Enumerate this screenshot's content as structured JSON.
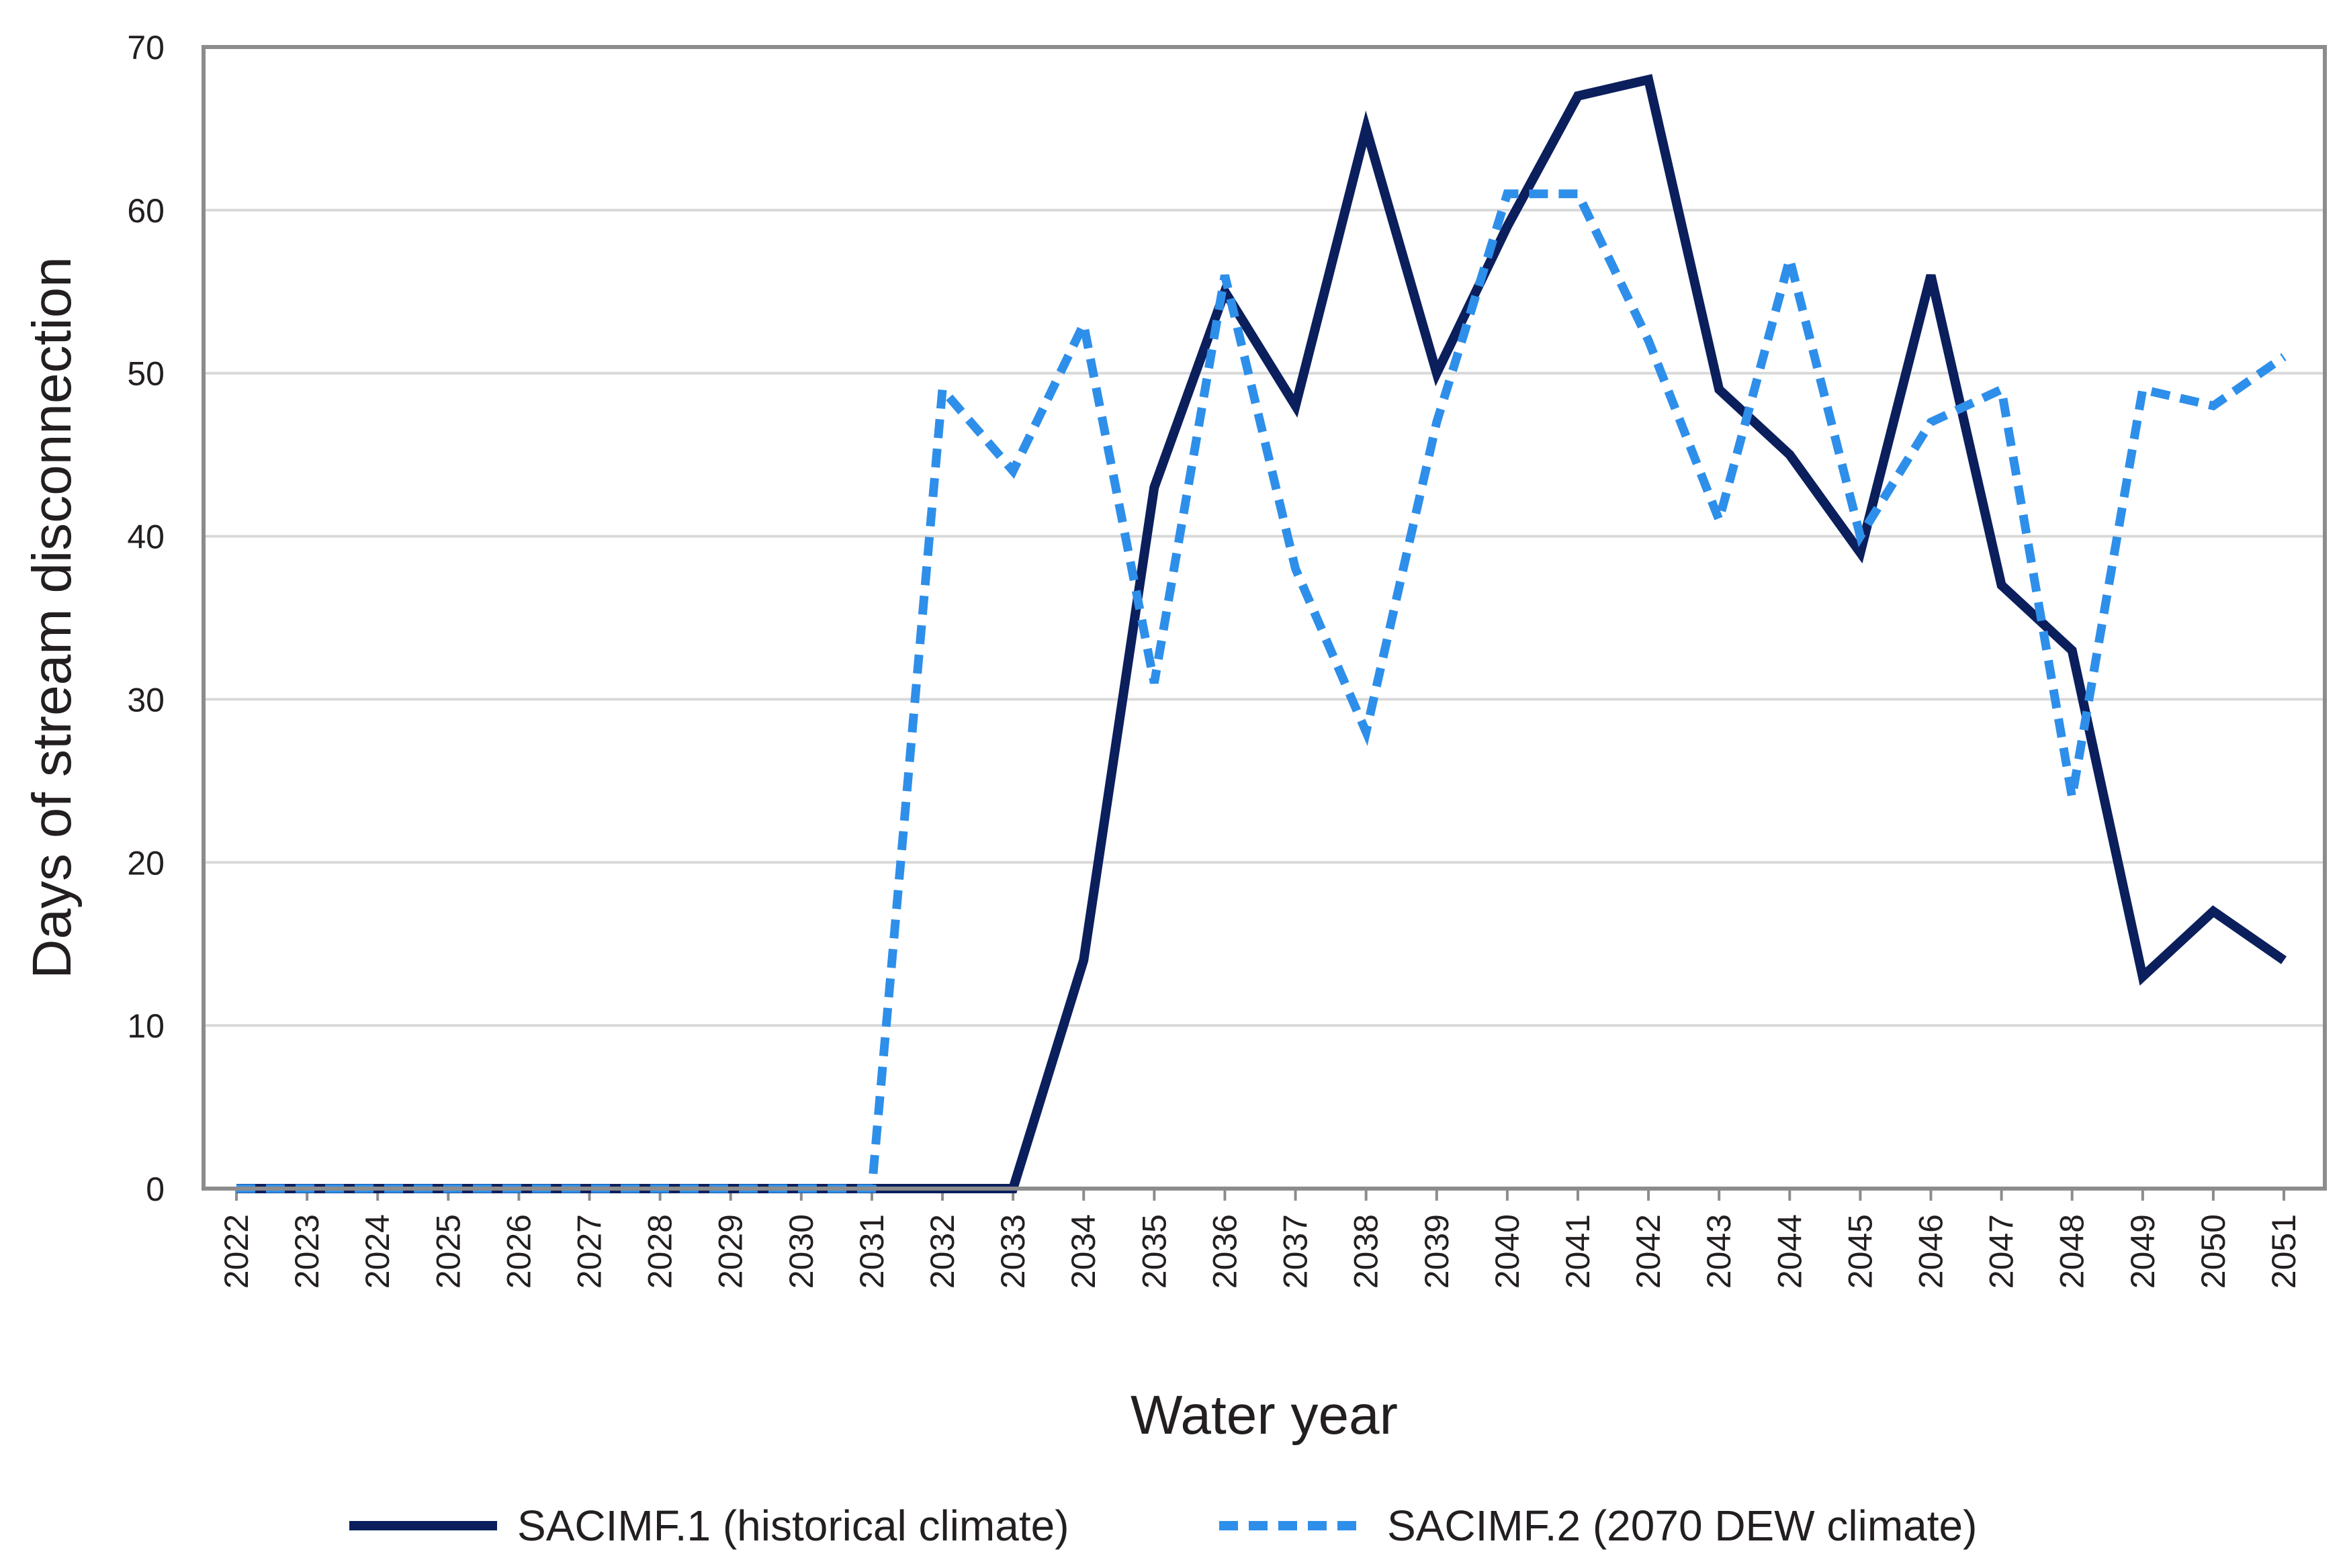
{
  "chart_data": {
    "type": "line",
    "title": "",
    "xlabel": "Water year",
    "ylabel": "Days of stream disconnection",
    "ylim": [
      0,
      70
    ],
    "yticks": [
      0,
      10,
      20,
      30,
      40,
      50,
      60,
      70
    ],
    "grid": true,
    "legend_position": "bottom",
    "categories": [
      "2022",
      "2023",
      "2024",
      "2025",
      "2026",
      "2027",
      "2028",
      "2029",
      "2030",
      "2031",
      "2032",
      "2033",
      "2034",
      "2035",
      "2036",
      "2037",
      "2038",
      "2039",
      "2040",
      "2041",
      "2042",
      "2043",
      "2044",
      "2045",
      "2046",
      "2047",
      "2048",
      "2049",
      "2050",
      "2051"
    ],
    "series": [
      {
        "name": "SACIMF.1 (historical climate)",
        "color": "#0b1f5c",
        "style": "solid",
        "values": [
          0,
          0,
          0,
          0,
          0,
          0,
          0,
          0,
          0,
          0,
          0,
          0,
          14,
          43,
          55,
          48,
          65,
          50,
          59,
          67,
          68,
          49,
          45,
          39,
          56,
          37,
          33,
          13,
          17,
          14
        ]
      },
      {
        "name": "SACIMF.2 (2070 DEW climate)",
        "color": "#2e8fea",
        "style": "dashed",
        "values": [
          0,
          0,
          0,
          0,
          0,
          0,
          0,
          0,
          0,
          0,
          49,
          44,
          53,
          31,
          56,
          38,
          28,
          47,
          61,
          61,
          52,
          41,
          57,
          40,
          47,
          49,
          24,
          49,
          48,
          51
        ]
      }
    ]
  }
}
